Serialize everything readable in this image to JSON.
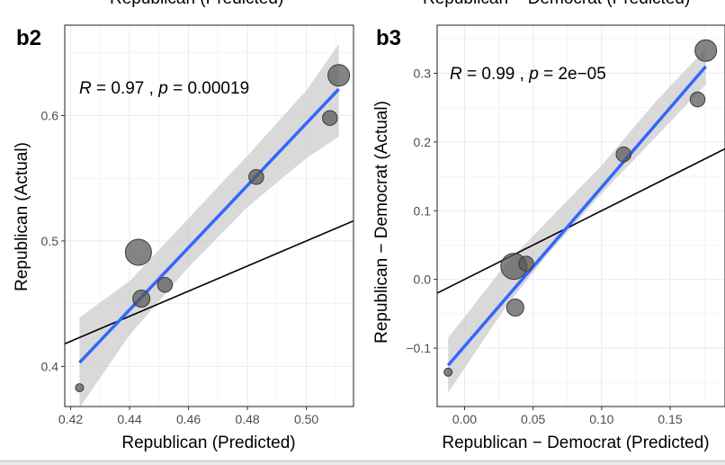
{
  "chart_data": [
    {
      "type": "scatter",
      "panel_label": "b2",
      "top_cut_title": "Republican (Predicted)",
      "xlabel": "Republican (Predicted)",
      "ylabel": "Republican (Actual)",
      "xlim": [
        0.418,
        0.516
      ],
      "ylim": [
        0.368,
        0.672
      ],
      "x_ticks": [
        0.42,
        0.44,
        0.46,
        0.48,
        0.5
      ],
      "x_tick_labels": [
        "0.42",
        "0.44",
        "0.46",
        "0.48",
        "0.50"
      ],
      "y_ticks": [
        0.4,
        0.5,
        0.6
      ],
      "y_tick_labels": [
        "0.4",
        "0.5",
        "0.6"
      ],
      "grid": true,
      "stat_label": {
        "R": "0.97",
        "p": "0.00019"
      },
      "points": [
        {
          "x": 0.423,
          "y": 0.383,
          "size": 2
        },
        {
          "x": 0.443,
          "y": 0.491,
          "size": 10
        },
        {
          "x": 0.444,
          "y": 0.454,
          "size": 6
        },
        {
          "x": 0.452,
          "y": 0.465,
          "size": 5
        },
        {
          "x": 0.483,
          "y": 0.551,
          "size": 5
        },
        {
          "x": 0.508,
          "y": 0.598,
          "size": 5
        },
        {
          "x": 0.511,
          "y": 0.632,
          "size": 8
        }
      ],
      "fit_line": {
        "x": [
          0.423,
          0.511
        ],
        "y": [
          0.403,
          0.621
        ]
      },
      "confidence_band": {
        "x": [
          0.423,
          0.44,
          0.46,
          0.48,
          0.5,
          0.511
        ],
        "lower": [
          0.367,
          0.425,
          0.479,
          0.527,
          0.566,
          0.583
        ],
        "upper": [
          0.439,
          0.468,
          0.518,
          0.568,
          0.62,
          0.657
        ]
      },
      "reference_line": {
        "x": [
          0.418,
          0.516
        ],
        "y": [
          0.418,
          0.516
        ]
      },
      "colors": {
        "fit": "#3366FF",
        "band": "#CCCCCC",
        "points": "#555555",
        "reference": "#000000"
      }
    },
    {
      "type": "scatter",
      "panel_label": "b3",
      "top_cut_title": "Republican − Democrat (Predicted)",
      "xlabel": "Republican − Democrat (Predicted)",
      "ylabel": "Republican − Democrat (Actual)",
      "xlim": [
        -0.02,
        0.19
      ],
      "ylim": [
        -0.185,
        0.37
      ],
      "x_ticks": [
        0.0,
        0.05,
        0.1,
        0.15
      ],
      "x_tick_labels": [
        "0.00",
        "0.05",
        "0.10",
        "0.15"
      ],
      "y_ticks": [
        -0.1,
        0.0,
        0.1,
        0.2,
        0.3
      ],
      "y_tick_labels": [
        "−0.1",
        "0.0",
        "0.1",
        "0.2",
        "0.3"
      ],
      "grid": true,
      "stat_label": {
        "R": "0.99",
        "p": "2e−05"
      },
      "points": [
        {
          "x": -0.012,
          "y": -0.135,
          "size": 2
        },
        {
          "x": 0.036,
          "y": 0.019,
          "size": 10
        },
        {
          "x": 0.045,
          "y": 0.023,
          "size": 5
        },
        {
          "x": 0.037,
          "y": -0.041,
          "size": 6
        },
        {
          "x": 0.116,
          "y": 0.182,
          "size": 5
        },
        {
          "x": 0.17,
          "y": 0.262,
          "size": 5
        },
        {
          "x": 0.176,
          "y": 0.333,
          "size": 8
        }
      ],
      "fit_line": {
        "x": [
          -0.012,
          0.176
        ],
        "y": [
          -0.125,
          0.31
        ]
      },
      "confidence_band": {
        "x": [
          -0.012,
          0.03,
          0.06,
          0.1,
          0.14,
          0.176
        ],
        "lower": [
          -0.165,
          -0.04,
          0.035,
          0.125,
          0.208,
          0.284
        ],
        "upper": [
          -0.085,
          0.022,
          0.084,
          0.166,
          0.26,
          0.336
        ]
      },
      "reference_line": {
        "x": [
          -0.02,
          0.19
        ],
        "y": [
          -0.02,
          0.19
        ]
      },
      "colors": {
        "fit": "#3366FF",
        "band": "#CCCCCC",
        "points": "#555555",
        "reference": "#000000"
      }
    }
  ]
}
